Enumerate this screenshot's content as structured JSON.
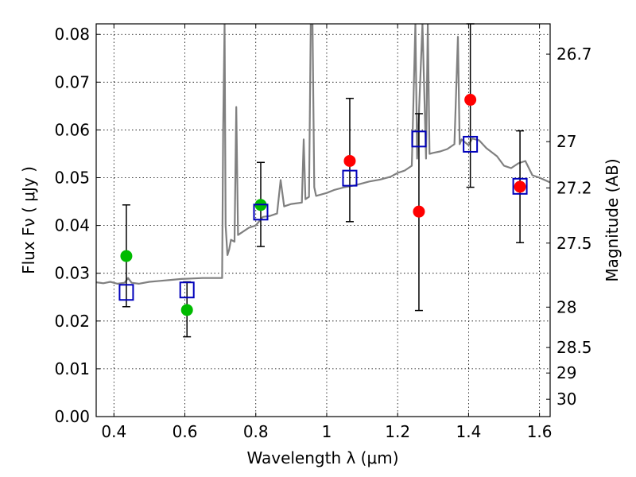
{
  "chart_data": {
    "type": "scatter",
    "xlabel": "Wavelength  λ (μm)",
    "ylabel": "Flux  Fν  ( μJy )",
    "ylabel_right": "Magnitude (AB)",
    "xlim": [
      0.35,
      1.63
    ],
    "ylim": [
      0,
      0.0822
    ],
    "grid": true,
    "x_ticks": [
      0.4,
      0.6,
      0.8,
      1.0,
      1.2,
      1.4,
      1.6
    ],
    "x_tick_labels": [
      "0.4",
      "0.6",
      "0.8",
      "1",
      "1.2",
      "1.4",
      "1.6"
    ],
    "y_ticks": [
      0,
      0.01,
      0.02,
      0.03,
      0.04,
      0.05,
      0.06,
      0.07,
      0.08
    ],
    "y_tick_labels": [
      "0.00",
      "0.01",
      "0.02",
      "0.03",
      "0.04",
      "0.05",
      "0.06",
      "0.07",
      "0.08"
    ],
    "right_ticks": [
      {
        "label": "26.7",
        "mag": 26.7
      },
      {
        "label": "27",
        "mag": 27
      },
      {
        "label": "27.2",
        "mag": 27.2
      },
      {
        "label": "27.5",
        "mag": 27.5
      },
      {
        "label": "28",
        "mag": 28
      },
      {
        "label": "28.5",
        "mag": 28.5
      },
      {
        "label": "29",
        "mag": 29
      },
      {
        "label": "30",
        "mag": 30
      }
    ],
    "series": [
      {
        "marker": "circle",
        "color": "#00bb00",
        "points": [
          {
            "x": 0.435,
            "y": 0.0336
          },
          {
            "x": 0.606,
            "y": 0.0223
          },
          {
            "x": 0.814,
            "y": 0.0443
          }
        ]
      },
      {
        "marker": "circle",
        "color": "#ff0000",
        "points": [
          {
            "x": 1.065,
            "y": 0.0535
          },
          {
            "x": 1.26,
            "y": 0.0429
          },
          {
            "x": 1.405,
            "y": 0.0663
          },
          {
            "x": 1.545,
            "y": 0.0481
          }
        ]
      },
      {
        "marker": "square",
        "color": "#0000bb",
        "points": [
          {
            "x": 0.435,
            "y": 0.026,
            "ylo": 0.023,
            "yhi": 0.0443
          },
          {
            "x": 0.606,
            "y": 0.0265,
            "ylo": 0.0167,
            "yhi": 0.0282
          },
          {
            "x": 0.814,
            "y": 0.0428,
            "ylo": 0.0356,
            "yhi": 0.0532
          },
          {
            "x": 1.065,
            "y": 0.0499,
            "ylo": 0.0408,
            "yhi": 0.0666
          },
          {
            "x": 1.26,
            "y": 0.0581,
            "ylo": 0.0222,
            "yhi": 0.0634
          },
          {
            "x": 1.405,
            "y": 0.057,
            "ylo": 0.048,
            "yhi": 0.0822
          },
          {
            "x": 1.545,
            "y": 0.0482,
            "ylo": 0.0364,
            "yhi": 0.0598
          }
        ]
      }
    ],
    "spectrum": {
      "color": "#808080",
      "x": [
        0.35,
        0.37,
        0.39,
        0.41,
        0.43,
        0.44,
        0.45,
        0.47,
        0.5,
        0.53,
        0.56,
        0.59,
        0.62,
        0.65,
        0.68,
        0.705,
        0.708,
        0.712,
        0.715,
        0.72,
        0.725,
        0.73,
        0.74,
        0.745,
        0.75,
        0.76,
        0.78,
        0.8,
        0.82,
        0.84,
        0.86,
        0.87,
        0.88,
        0.9,
        0.93,
        0.935,
        0.94,
        0.95,
        0.955,
        0.96,
        0.965,
        0.97,
        1.0,
        1.02,
        1.05,
        1.08,
        1.1,
        1.12,
        1.15,
        1.18,
        1.2,
        1.22,
        1.24,
        1.25,
        1.255,
        1.27,
        1.28,
        1.285,
        1.29,
        1.3,
        1.32,
        1.34,
        1.36,
        1.37,
        1.375,
        1.38,
        1.4,
        1.41,
        1.43,
        1.45,
        1.48,
        1.5,
        1.52,
        1.54,
        1.56,
        1.58,
        1.6,
        1.63
      ],
      "y": [
        0.0281,
        0.0279,
        0.0282,
        0.0278,
        0.028,
        0.029,
        0.028,
        0.0278,
        0.0282,
        0.0284,
        0.0286,
        0.0288,
        0.0289,
        0.029,
        0.029,
        0.029,
        0.06,
        0.0822,
        0.04,
        0.0338,
        0.035,
        0.037,
        0.0366,
        0.0648,
        0.038,
        0.0385,
        0.0395,
        0.04,
        0.0418,
        0.042,
        0.0425,
        0.0495,
        0.044,
        0.0445,
        0.0448,
        0.058,
        0.0455,
        0.046,
        0.0822,
        0.0822,
        0.048,
        0.0462,
        0.0468,
        0.0474,
        0.048,
        0.0484,
        0.0488,
        0.0492,
        0.0496,
        0.0502,
        0.051,
        0.0515,
        0.0525,
        0.0822,
        0.054,
        0.0822,
        0.054,
        0.0822,
        0.055,
        0.0552,
        0.0555,
        0.056,
        0.057,
        0.0795,
        0.057,
        0.058,
        0.0568,
        0.0582,
        0.0578,
        0.0562,
        0.0545,
        0.0525,
        0.052,
        0.053,
        0.0535,
        0.0505,
        0.05,
        0.049
      ]
    }
  }
}
